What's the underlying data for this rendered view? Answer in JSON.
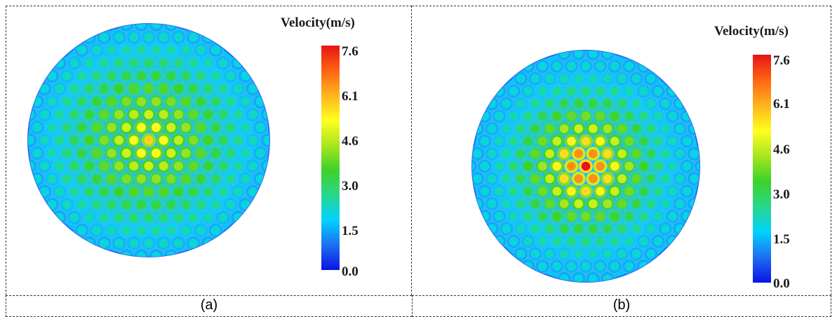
{
  "panels": [
    {
      "caption": "(a)",
      "legend": {
        "title": "Velocity(m/s)",
        "ticks": [
          "7.6",
          "6.1",
          "4.6",
          "3.0",
          "1.5",
          "0.0"
        ]
      },
      "peak_velocity": 5.6
    },
    {
      "caption": "(b)",
      "legend": {
        "title": "Velocity(m/s)",
        "ticks": [
          "7.6",
          "6.1",
          "4.6",
          "3.0",
          "1.5",
          "0.0"
        ]
      },
      "peak_velocity": 7.6
    }
  ],
  "colormap": {
    "min": 0.0,
    "max": 7.6,
    "stops": [
      "#0a14e6",
      "#1e6ef0",
      "#00d2ff",
      "#28d78c",
      "#3cd22a",
      "#a8e61e",
      "#ffff1e",
      "#ffb41e",
      "#ff6414",
      "#e61414"
    ]
  }
}
